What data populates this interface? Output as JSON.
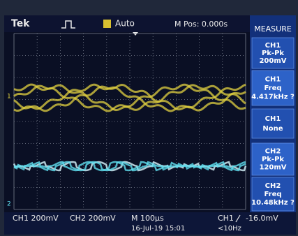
{
  "header": {
    "brand": "Tek",
    "trigger_mode": "Auto",
    "position": "M Pos: 0.000s"
  },
  "measure": {
    "title": "MEASURE",
    "items": [
      {
        "channel": "CH1",
        "type": "Pk-Pk",
        "value": "200mV"
      },
      {
        "channel": "CH1",
        "type": "Freq",
        "value": "4.417kHz ?"
      },
      {
        "channel": "CH1",
        "type": "None"
      },
      {
        "channel": "CH2",
        "type": "Pk-Pk",
        "value": "120mV"
      },
      {
        "channel": "CH2",
        "type": "Freq",
        "value": "10.48kHz ?"
      }
    ]
  },
  "markers": {
    "ch1": "1",
    "ch2": "2"
  },
  "footer": {
    "ch1_scale": "CH1 200mV",
    "ch2_scale": "CH2 200mV",
    "timebase": "M 100µs",
    "date": "16-Jul-19 15:01",
    "trigger_source": "CH1",
    "trigger_level": "-16.0mV",
    "trigger_freq": "<10Hz"
  }
}
